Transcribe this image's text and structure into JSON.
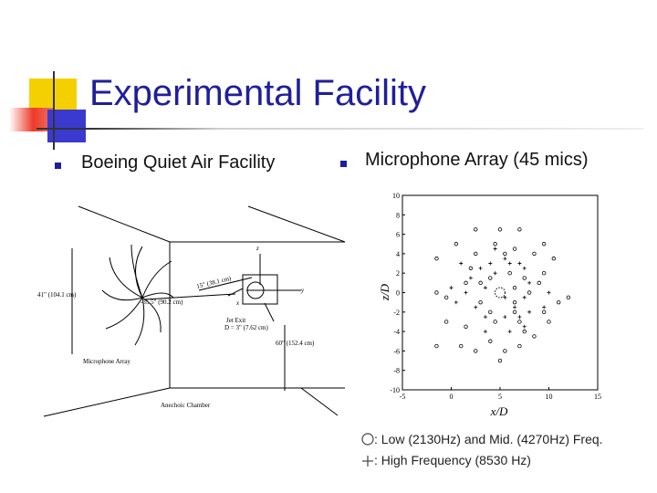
{
  "slide": {
    "title": "Experimental Facility",
    "accent_colors": {
      "yellow": "#f5d000",
      "red": "#ee3a2a",
      "blue": "#1f1f9a",
      "rule": "#cfcfcf"
    }
  },
  "bullets": [
    {
      "text": "Boeing Quiet Air Facility"
    },
    {
      "text": "Microphone Array (45 mics)"
    }
  ],
  "facility_diagram": {
    "labels": {
      "dist_41": "41\" (104.1 cm)",
      "dist_35": "-35.5\" (90.2 cm)",
      "dist_15": "15\" (38.1 cm)",
      "dist_60": "60\" (152.4 cm)",
      "jet_exit": "Jet Exit",
      "jet_d": "D = 3\" (7.62 cm)",
      "mic_array": "Microphone Array",
      "chamber": "Anechoic Chamber",
      "axis_z": "z",
      "axis_y": "y",
      "axis_x": "x"
    }
  },
  "chart_data": {
    "type": "scatter",
    "xlabel": "x/D",
    "ylabel": "z/D",
    "xlim": [
      -5,
      15
    ],
    "ylim": [
      -10,
      10
    ],
    "xticks": [
      -5,
      0,
      5,
      10,
      15
    ],
    "yticks": [
      10,
      8,
      6,
      4,
      2,
      0,
      -2,
      -4,
      -6,
      -8,
      -10
    ],
    "grid": false,
    "series": [
      {
        "name": "Low (2130Hz) and Mid. (4270Hz) Freq.",
        "marker": "circle",
        "points": [
          [
            2.5,
            6.5
          ],
          [
            5,
            6.5
          ],
          [
            7,
            6.5
          ],
          [
            0.5,
            5
          ],
          [
            4.5,
            5
          ],
          [
            9.5,
            5
          ],
          [
            6.5,
            4.5
          ],
          [
            -1.5,
            3.5
          ],
          [
            2.5,
            4
          ],
          [
            5.5,
            4
          ],
          [
            8.5,
            4
          ],
          [
            10.5,
            3.5
          ],
          [
            -1.5,
            0
          ],
          [
            6,
            2
          ],
          [
            9.5,
            2
          ],
          [
            1.5,
            1
          ],
          [
            -0.5,
            -0.5
          ],
          [
            3,
            1
          ],
          [
            6.5,
            0.5
          ],
          [
            8,
            0
          ],
          [
            11,
            -1
          ],
          [
            12,
            -0.5
          ],
          [
            3,
            -1
          ],
          [
            4,
            -2
          ],
          [
            6.5,
            -2
          ],
          [
            9.5,
            -2
          ],
          [
            -0.5,
            -3
          ],
          [
            1.5,
            -3.5
          ],
          [
            4.5,
            -3
          ],
          [
            7,
            -3
          ],
          [
            10,
            -3
          ],
          [
            -1.5,
            -5.5
          ],
          [
            1,
            -5.5
          ],
          [
            4,
            -5
          ],
          [
            7,
            -5.5
          ],
          [
            8.5,
            -4.5
          ],
          [
            2.5,
            -6
          ],
          [
            5,
            -7
          ],
          [
            5.5,
            -6
          ],
          [
            7.5,
            -4
          ],
          [
            4,
            1.5
          ],
          [
            6.5,
            -1
          ],
          [
            9,
            1
          ],
          [
            2,
            2.5
          ],
          [
            7.5,
            1.5
          ]
        ],
        "values_y": [
          6.5,
          6.5,
          6.5,
          5,
          5,
          5,
          4.5,
          3.5,
          4,
          4,
          4,
          3.5,
          0,
          2,
          2,
          1,
          -0.5,
          1,
          0.5,
          0,
          -1,
          -0.5,
          -1,
          -2,
          -2,
          -2,
          -3,
          -3.5,
          -3,
          -3,
          -3,
          -5.5,
          -5.5,
          -5,
          -5.5,
          -4.5,
          -6,
          -7,
          -6,
          -4,
          1.5,
          -1,
          1,
          2.5,
          1.5
        ]
      },
      {
        "name": "High Frequency (8530 Hz)",
        "marker": "plus",
        "points": [
          [
            4.5,
            4.5
          ],
          [
            5.5,
            3.5
          ],
          [
            4,
            3
          ],
          [
            7,
            3
          ],
          [
            1,
            3
          ],
          [
            3,
            2.5
          ],
          [
            6,
            3
          ],
          [
            7.5,
            2.5
          ],
          [
            0,
            0.5
          ],
          [
            1.5,
            0
          ],
          [
            3.5,
            0.5
          ],
          [
            7.5,
            -0.5
          ],
          [
            10,
            0
          ],
          [
            0.5,
            -1
          ],
          [
            2.5,
            -1.5
          ],
          [
            6.5,
            -1.5
          ],
          [
            8,
            -2
          ],
          [
            9.5,
            -1.5
          ],
          [
            3.5,
            -2.5
          ],
          [
            5.5,
            -2.5
          ],
          [
            7,
            -2.5
          ],
          [
            3.5,
            -4
          ],
          [
            6,
            -4
          ],
          [
            7.5,
            -3.5
          ],
          [
            2,
            1.5
          ],
          [
            8,
            1
          ],
          [
            4.5,
            2
          ],
          [
            5.5,
            -0.5
          ]
        ]
      },
      {
        "name": "",
        "marker": "dashed-circle",
        "points": [
          [
            5,
            0
          ]
        ]
      }
    ],
    "legend": {
      "circle_text": ": Low (2130Hz) and Mid. (4270Hz) Freq.",
      "plus_text": ": High Frequency (8530 Hz)",
      "position": "bottom"
    }
  }
}
